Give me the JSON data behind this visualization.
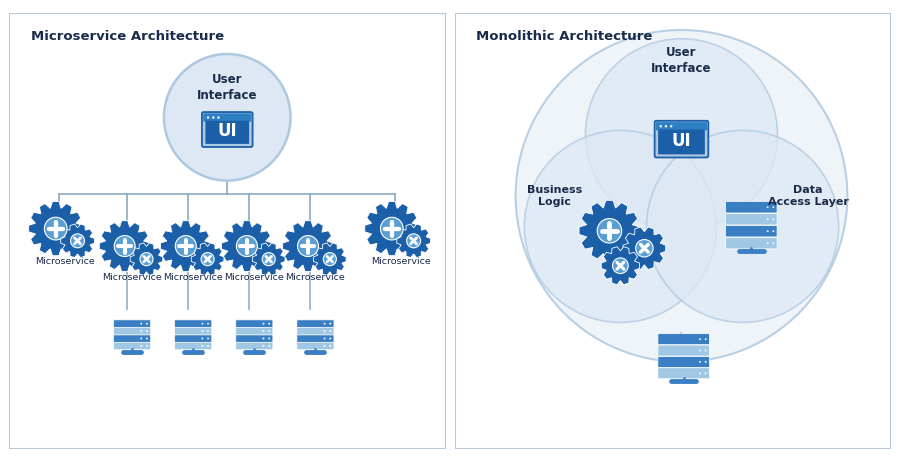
{
  "bg_color": "#ffffff",
  "border_color": "#b8c8dc",
  "panel_bg": "#ffffff",
  "title_color": "#1a2a4a",
  "text_color": "#1a2a4a",
  "blue_dark": "#1b5fa8",
  "blue_mid": "#2e7ec4",
  "blue_light": "#aec8e0",
  "blue_lighter": "#ccdcee",
  "blue_pale": "#dde8f4",
  "blue_very_pale": "#edf3f9",
  "gear_dark": "#1b5fa8",
  "gear_light": "#5a9fd4",
  "server_dark": "#3a7fc4",
  "server_light": "#7ab4dc",
  "server_lighter": "#a0c8e4",
  "line_color": "#8aaabf",
  "left_title": "Microservice Architecture",
  "right_title": "Monolithic Architecture",
  "ui_label": "User\nInterface",
  "ms_label": "Microservice",
  "bl_label": "Business\nLogic",
  "dal_label": "Data\nAccess Layer"
}
